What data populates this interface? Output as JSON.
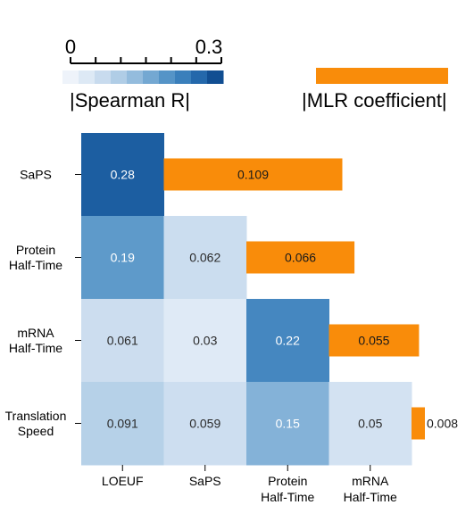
{
  "chart_data": {
    "type": "heatmap",
    "rows": [
      "SaPS",
      "Protein Half-Time",
      "mRNA Half-Time",
      "Translation Speed"
    ],
    "row_labels": [
      [
        "SaPS"
      ],
      [
        "Protein",
        "Half-Time"
      ],
      [
        "mRNA",
        "Half-Time"
      ],
      [
        "Translation",
        "Speed"
      ]
    ],
    "columns": [
      "LOEUF",
      "SaPS",
      "Protein Half-Time",
      "mRNA Half-Time"
    ],
    "col_labels": [
      [
        "LOEUF"
      ],
      [
        "SaPS"
      ],
      [
        "Protein",
        "Half-Time"
      ],
      [
        "mRNA",
        "Half-Time"
      ]
    ],
    "spearman_values": [
      [
        0.28
      ],
      [
        0.19,
        0.062
      ],
      [
        0.061,
        0.03,
        0.22
      ],
      [
        0.091,
        0.059,
        0.15,
        0.05
      ]
    ],
    "spearman_labels": [
      [
        "0.28"
      ],
      [
        "0.19",
        "0.062"
      ],
      [
        "0.061",
        "0.03",
        "0.22"
      ],
      [
        "0.091",
        "0.059",
        "0.15",
        "0.05"
      ]
    ],
    "mlr_values": [
      0.109,
      0.066,
      0.055,
      0.008
    ],
    "mlr_labels": [
      "0.109",
      "0.066",
      "0.055",
      "0.008"
    ],
    "colorbar": {
      "title": "|Spearman R|",
      "min": 0,
      "max": 0.3,
      "min_label": "0",
      "max_label": "0.3",
      "colors": [
        "#eef3fa",
        "#dde9f5",
        "#c8dbee",
        "#b0cde6",
        "#94bcdd",
        "#74a8d2",
        "#5594c7",
        "#3a7fbb",
        "#2468ab",
        "#114e92"
      ]
    },
    "mlr_legend": {
      "title": "|MLR coefficient|",
      "color": "#f98c0a"
    }
  }
}
